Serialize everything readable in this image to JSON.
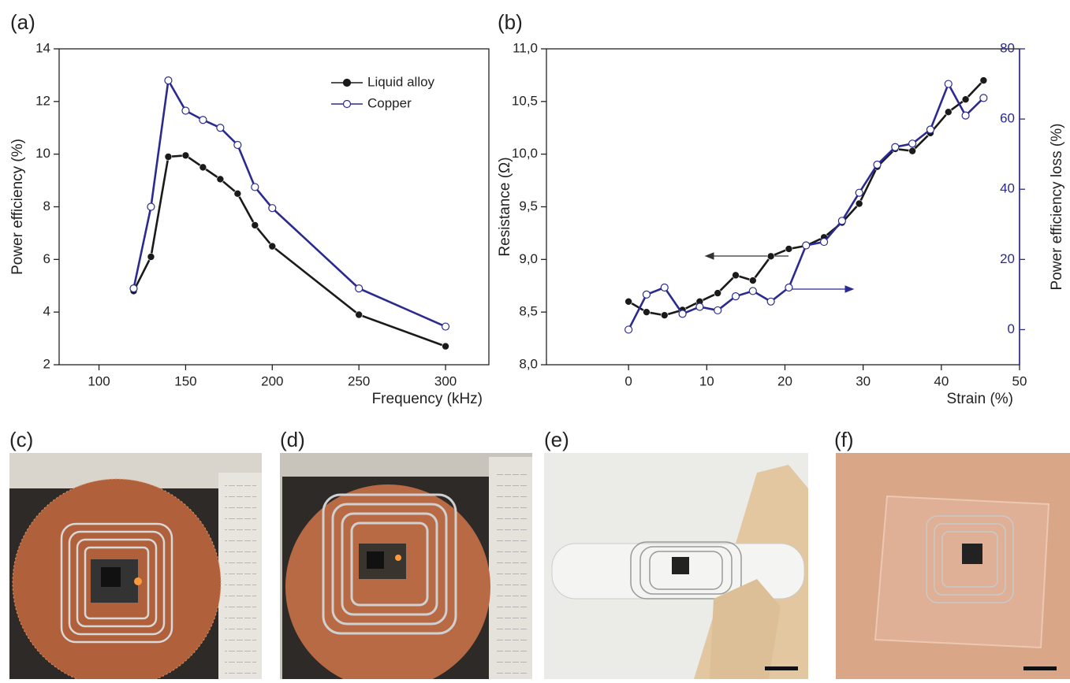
{
  "chart_data": [
    {
      "type": "line",
      "panel_label": "(a)",
      "x_label": "Frequency (kHz)",
      "y_label": "Power efficiency (%)",
      "x": [
        120,
        130,
        140,
        150,
        160,
        170,
        180,
        190,
        200,
        250,
        300
      ],
      "series": [
        {
          "name": "Liquid alloy",
          "color": "#1a1a1a",
          "marker": "filled",
          "values": [
            4.8,
            6.1,
            9.9,
            9.95,
            9.5,
            9.05,
            8.5,
            7.3,
            6.5,
            3.9,
            2.7
          ]
        },
        {
          "name": "Copper",
          "color": "#2b2b8f",
          "marker": "open",
          "values": [
            4.9,
            8.0,
            12.8,
            11.65,
            11.3,
            11.0,
            10.35,
            8.75,
            7.95,
            4.9,
            3.45
          ]
        }
      ],
      "xlim": [
        77,
        325
      ],
      "xticks": [
        100,
        150,
        200,
        250,
        300
      ],
      "ylim": [
        2,
        14
      ],
      "yticks": [
        2,
        4,
        6,
        8,
        10,
        12,
        14
      ],
      "legend": "upper right"
    },
    {
      "type": "line",
      "panel_label": "(b)",
      "x_label": "Strain (%)",
      "y_label": "Resistance (Ω)",
      "y2_label": "Power efficiency loss (%)",
      "x": [
        0,
        2.3,
        4.6,
        6.9,
        9.1,
        11.4,
        13.7,
        15.9,
        18.2,
        20.5,
        22.7,
        25.0,
        27.3,
        29.5,
        31.8,
        34.1,
        36.3,
        38.6,
        40.9,
        43.1,
        45.4
      ],
      "series": [
        {
          "color": "#1a1a1a",
          "marker": "filled",
          "values": [
            8.6,
            8.5,
            8.47,
            8.52,
            8.6,
            8.68,
            8.85,
            8.8,
            9.03,
            9.1,
            9.13,
            9.21,
            9.35,
            9.53,
            9.88,
            10.05,
            10.03,
            10.2,
            10.4,
            10.52,
            10.7
          ]
        },
        {
          "color": "#2b2b8f",
          "marker": "open",
          "axis": "y2",
          "values": [
            0,
            10,
            12,
            4.5,
            6.5,
            5.5,
            9.5,
            11,
            8,
            12,
            24,
            25,
            31,
            39,
            47,
            52,
            53,
            57,
            70,
            61,
            66
          ]
        }
      ],
      "xlim": [
        -10.5,
        50
      ],
      "xticks": [
        0,
        10,
        20,
        30,
        40,
        50
      ],
      "ylim": [
        8,
        11
      ],
      "yticks": [
        {
          "value": 8,
          "label": "8,0"
        },
        {
          "value": 8.5,
          "label": "8,5"
        },
        {
          "value": 9,
          "label": "9,0"
        },
        {
          "value": 9.5,
          "label": "9,5"
        },
        {
          "value": 10,
          "label": "10,0"
        },
        {
          "value": 10.5,
          "label": "10,5"
        },
        {
          "value": 11,
          "label": "11,0"
        }
      ],
      "y2lim": [
        -10,
        80
      ],
      "y2ticks": [
        0,
        20,
        40,
        60,
        80
      ],
      "y2_color": "#2b2b8f"
    }
  ],
  "photos": [
    {
      "label": "(c)"
    },
    {
      "label": "(d)"
    },
    {
      "label": "(e)"
    },
    {
      "label": "(f)"
    }
  ]
}
